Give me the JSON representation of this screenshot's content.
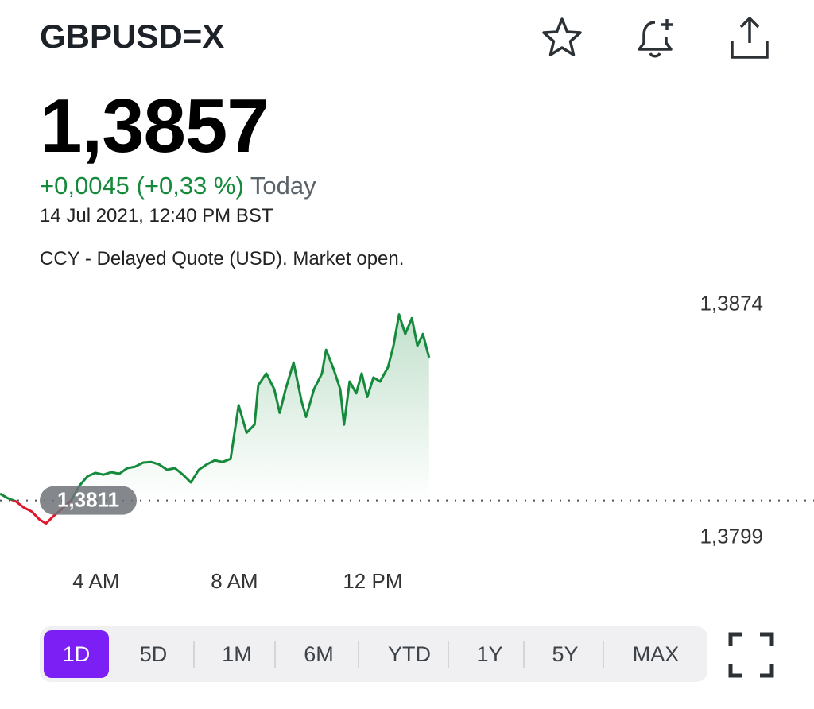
{
  "header": {
    "symbol": "GBPUSD=X"
  },
  "quote": {
    "price": "1,3857",
    "change": "+0,0045 (+0,33 %)",
    "change_label": "Today",
    "timestamp": "14 Jul 2021, 12:40 PM BST",
    "note": "CCY - Delayed Quote (USD). Market open."
  },
  "chart_data": {
    "type": "line",
    "x": [
      1.22,
      1.45,
      1.68,
      1.91,
      2.14,
      2.37,
      2.55,
      2.78,
      3.06,
      3.29,
      3.52,
      3.75,
      3.98,
      4.21,
      4.44,
      4.67,
      4.9,
      5.13,
      5.36,
      5.59,
      5.82,
      6.05,
      6.28,
      6.51,
      6.74,
      6.97,
      7.2,
      7.43,
      7.66,
      7.89,
      8.12,
      8.35,
      8.58,
      8.69,
      8.92,
      9.15,
      9.31,
      9.48,
      9.71,
      9.94,
      10.07,
      10.3,
      10.53,
      10.65,
      10.87,
      11.06,
      11.17,
      11.33,
      11.52,
      11.68,
      11.84,
      12.02,
      12.21,
      12.44,
      12.6,
      12.76,
      12.94,
      13.13,
      13.29,
      13.45,
      13.63
    ],
    "series": [
      {
        "values": [
          1.38132,
          1.38117,
          1.38107,
          1.38087,
          1.38074,
          1.38048,
          1.38036,
          1.38061,
          1.38087,
          1.38112,
          1.38158,
          1.38188,
          1.38199,
          1.38193,
          1.38201,
          1.38196,
          1.38214,
          1.38219,
          1.38232,
          1.38234,
          1.38226,
          1.38209,
          1.38214,
          1.38193,
          1.38168,
          1.38209,
          1.38226,
          1.38239,
          1.38234,
          1.38244,
          1.38417,
          1.38328,
          1.38354,
          1.38481,
          1.38519,
          1.38468,
          1.38392,
          1.38468,
          1.38554,
          1.3843,
          1.38379,
          1.38468,
          1.38519,
          1.38595,
          1.38532,
          1.38468,
          1.38354,
          1.38493,
          1.38455,
          1.38519,
          1.38443,
          1.38506,
          1.38493,
          1.38539,
          1.38608,
          1.38709,
          1.38646,
          1.38697,
          1.38608,
          1.38646,
          1.3857
        ]
      }
    ],
    "up_color": "#168a3c",
    "down_color": "#e0162b",
    "previous_close": {
      "value": 1.3811,
      "label": "1,3811"
    },
    "xlim": [
      1.22,
      24.76
    ],
    "xticks": [
      {
        "value": 4,
        "label": "4 AM"
      },
      {
        "value": 8,
        "label": "8 AM"
      },
      {
        "value": 12,
        "label": "12 PM"
      }
    ],
    "ylim": [
      1.3793,
      1.388
    ],
    "yticks": [
      {
        "value": 1.3874,
        "label": "1,3874"
      },
      {
        "value": 1.3799,
        "label": "1,3799"
      }
    ]
  },
  "range_tabs": [
    "1D",
    "5D",
    "1M",
    "6M",
    "YTD",
    "1Y",
    "5Y",
    "MAX"
  ],
  "selected_tab": 0
}
